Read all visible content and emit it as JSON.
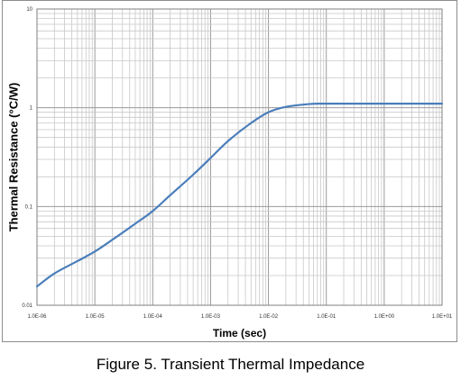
{
  "chart_data": {
    "type": "line",
    "title": "",
    "xlabel": "Time (sec)",
    "ylabel": "Thermal Resistance (°C/W)",
    "x_scale": "log",
    "y_scale": "log",
    "xlim": [
      1e-06,
      10
    ],
    "ylim": [
      0.01,
      10
    ],
    "grid": true,
    "legend": "none",
    "x_tick_labels": [
      "1.0E-06",
      "1.0E-05",
      "1.0E-04",
      "1.0E-03",
      "1.0E-02",
      "1.0E-01",
      "1.0E+00",
      "1.0E+01"
    ],
    "y_tick_labels": [
      "0.01",
      "0.1",
      "1",
      "10"
    ],
    "line_color": "#4a7ebb",
    "series": [
      {
        "x": [
          1e-06,
          2e-06,
          5e-06,
          1e-05,
          2e-05,
          5e-05,
          0.0001,
          0.0002,
          0.0005,
          0.001,
          0.002,
          0.005,
          0.01,
          0.02,
          0.05,
          0.1,
          1,
          10
        ],
        "values": [
          0.0155,
          0.021,
          0.028,
          0.035,
          0.046,
          0.067,
          0.09,
          0.13,
          0.21,
          0.31,
          0.46,
          0.7,
          0.9,
          1.02,
          1.09,
          1.1,
          1.1,
          1.1
        ]
      }
    ]
  },
  "caption": "Figure 5. Transient Thermal Impedance"
}
